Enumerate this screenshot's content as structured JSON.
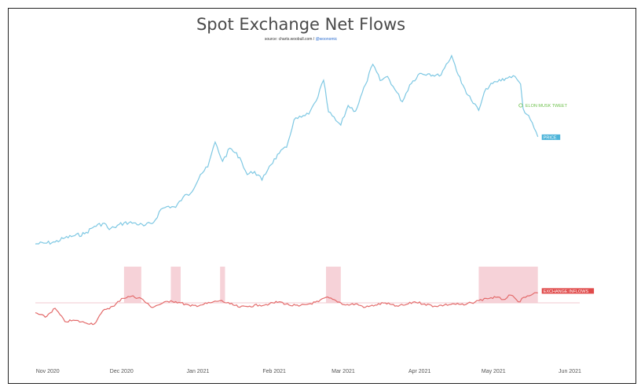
{
  "chart_data": {
    "type": "line",
    "title": "Spot Exchange Net Flows",
    "subtitle": {
      "prefix": "source: charts.woobull.com / ",
      "handle": "@woonomic"
    },
    "x_tick_labels": [
      "Nov 2020",
      "Dec 2020",
      "Jan 2021",
      "Feb 2021",
      "Mar 2021",
      "Apr 2021",
      "May 2021",
      "Jun 2021"
    ],
    "x_tick_dates": [
      "2020-11-01",
      "2020-12-01",
      "2021-01-01",
      "2021-02-01",
      "2021-03-01",
      "2021-04-01",
      "2021-05-01",
      "2021-06-01"
    ],
    "x_range": [
      "2020-10-27",
      "2021-06-05"
    ],
    "grid": false,
    "series": [
      {
        "name": "PRICE",
        "color": "#7ec8e3",
        "label_bg": "#4db4d9",
        "points": [
          [
            "2020-10-27",
            13600
          ],
          [
            "2020-10-31",
            13800
          ],
          [
            "2020-11-04",
            14100
          ],
          [
            "2020-11-08",
            15200
          ],
          [
            "2020-11-12",
            15800
          ],
          [
            "2020-11-16",
            16300
          ],
          [
            "2020-11-20",
            18300
          ],
          [
            "2020-11-24",
            19100
          ],
          [
            "2020-11-26",
            17400
          ],
          [
            "2020-11-28",
            18000
          ],
          [
            "2020-12-02",
            19200
          ],
          [
            "2020-12-06",
            19200
          ],
          [
            "2020-12-10",
            18400
          ],
          [
            "2020-12-14",
            19300
          ],
          [
            "2020-12-17",
            22800
          ],
          [
            "2020-12-20",
            23600
          ],
          [
            "2020-12-23",
            23300
          ],
          [
            "2020-12-26",
            26000
          ],
          [
            "2020-12-29",
            27000
          ],
          [
            "2021-01-02",
            32000
          ],
          [
            "2021-01-05",
            34000
          ],
          [
            "2021-01-08",
            40600
          ],
          [
            "2021-01-11",
            35500
          ],
          [
            "2021-01-14",
            39000
          ],
          [
            "2021-01-18",
            36500
          ],
          [
            "2021-01-21",
            32000
          ],
          [
            "2021-01-24",
            32800
          ],
          [
            "2021-01-27",
            30500
          ],
          [
            "2021-01-30",
            34200
          ],
          [
            "2021-02-03",
            37600
          ],
          [
            "2021-02-06",
            39200
          ],
          [
            "2021-02-09",
            46500
          ],
          [
            "2021-02-12",
            47200
          ],
          [
            "2021-02-15",
            48000
          ],
          [
            "2021-02-18",
            51500
          ],
          [
            "2021-02-21",
            57000
          ],
          [
            "2021-02-23",
            48600
          ],
          [
            "2021-02-26",
            46300
          ],
          [
            "2021-02-28",
            45100
          ],
          [
            "2021-03-03",
            50300
          ],
          [
            "2021-03-06",
            48800
          ],
          [
            "2021-03-10",
            55800
          ],
          [
            "2021-03-13",
            61200
          ],
          [
            "2021-03-16",
            56900
          ],
          [
            "2021-03-19",
            58000
          ],
          [
            "2021-03-22",
            54500
          ],
          [
            "2021-03-25",
            51300
          ],
          [
            "2021-03-28",
            55800
          ],
          [
            "2021-04-01",
            58800
          ],
          [
            "2021-04-05",
            58700
          ],
          [
            "2021-04-09",
            58100
          ],
          [
            "2021-04-14",
            63500
          ],
          [
            "2021-04-18",
            56200
          ],
          [
            "2021-04-22",
            51700
          ],
          [
            "2021-04-25",
            49000
          ],
          [
            "2021-04-28",
            54800
          ],
          [
            "2021-05-02",
            56600
          ],
          [
            "2021-05-06",
            57500
          ],
          [
            "2021-05-09",
            58200
          ],
          [
            "2021-05-12",
            56000
          ],
          [
            "2021-05-13",
            49500
          ],
          [
            "2021-05-16",
            46500
          ],
          [
            "2021-05-19",
            42000
          ]
        ]
      },
      {
        "name": "EXCHANGE INFLOWS",
        "color": "#e36b6b",
        "label_bg": "#e04a4a",
        "shade_color": "#f6d2d8",
        "points": [
          [
            "2020-10-27",
            -0.45
          ],
          [
            "2020-10-31",
            -0.65
          ],
          [
            "2020-11-04",
            -0.25
          ],
          [
            "2020-11-08",
            -0.85
          ],
          [
            "2020-11-12",
            -0.8
          ],
          [
            "2020-11-16",
            -0.9
          ],
          [
            "2020-11-20",
            -0.95
          ],
          [
            "2020-11-24",
            -0.3
          ],
          [
            "2020-11-28",
            -0.15
          ],
          [
            "2020-12-01",
            0.2
          ],
          [
            "2020-12-05",
            0.3
          ],
          [
            "2020-12-09",
            0.2
          ],
          [
            "2020-12-13",
            -0.2
          ],
          [
            "2020-12-17",
            -0.05
          ],
          [
            "2020-12-21",
            0.1
          ],
          [
            "2020-12-25",
            0.0
          ],
          [
            "2020-12-29",
            -0.15
          ],
          [
            "2021-01-02",
            -0.1
          ],
          [
            "2021-01-06",
            0.0
          ],
          [
            "2021-01-10",
            0.1
          ],
          [
            "2021-01-14",
            -0.05
          ],
          [
            "2021-01-18",
            -0.2
          ],
          [
            "2021-01-22",
            -0.15
          ],
          [
            "2021-01-26",
            -0.1
          ],
          [
            "2021-01-30",
            -0.05
          ],
          [
            "2021-02-03",
            0.05
          ],
          [
            "2021-02-07",
            -0.1
          ],
          [
            "2021-02-11",
            -0.15
          ],
          [
            "2021-02-15",
            -0.05
          ],
          [
            "2021-02-19",
            0.05
          ],
          [
            "2021-02-22",
            0.25
          ],
          [
            "2021-02-26",
            0.1
          ],
          [
            "2021-03-02",
            -0.1
          ],
          [
            "2021-03-06",
            -0.05
          ],
          [
            "2021-03-10",
            -0.2
          ],
          [
            "2021-03-14",
            -0.1
          ],
          [
            "2021-03-18",
            0.0
          ],
          [
            "2021-03-22",
            -0.15
          ],
          [
            "2021-03-26",
            -0.1
          ],
          [
            "2021-03-30",
            0.05
          ],
          [
            "2021-04-03",
            -0.05
          ],
          [
            "2021-04-07",
            -0.15
          ],
          [
            "2021-04-11",
            -0.1
          ],
          [
            "2021-04-15",
            -0.05
          ],
          [
            "2021-04-19",
            -0.1
          ],
          [
            "2021-04-22",
            0.0
          ],
          [
            "2021-04-25",
            0.1
          ],
          [
            "2021-04-28",
            0.2
          ],
          [
            "2021-05-02",
            0.25
          ],
          [
            "2021-05-05",
            0.15
          ],
          [
            "2021-05-08",
            0.35
          ],
          [
            "2021-05-11",
            0.05
          ],
          [
            "2021-05-14",
            0.25
          ],
          [
            "2021-05-17",
            0.4
          ],
          [
            "2021-05-19",
            0.45
          ]
        ],
        "shaded_periods": [
          [
            "2020-12-02",
            "2020-12-09"
          ],
          [
            "2020-12-21",
            "2020-12-25"
          ],
          [
            "2021-01-10",
            "2021-01-12"
          ],
          [
            "2021-02-22",
            "2021-02-28"
          ],
          [
            "2021-04-25",
            "2021-05-19"
          ]
        ]
      }
    ],
    "annotations": [
      {
        "label": "ELON MUSK TWEET",
        "date": "2021-05-13",
        "series": "PRICE",
        "color": "#6cc04a"
      }
    ]
  }
}
